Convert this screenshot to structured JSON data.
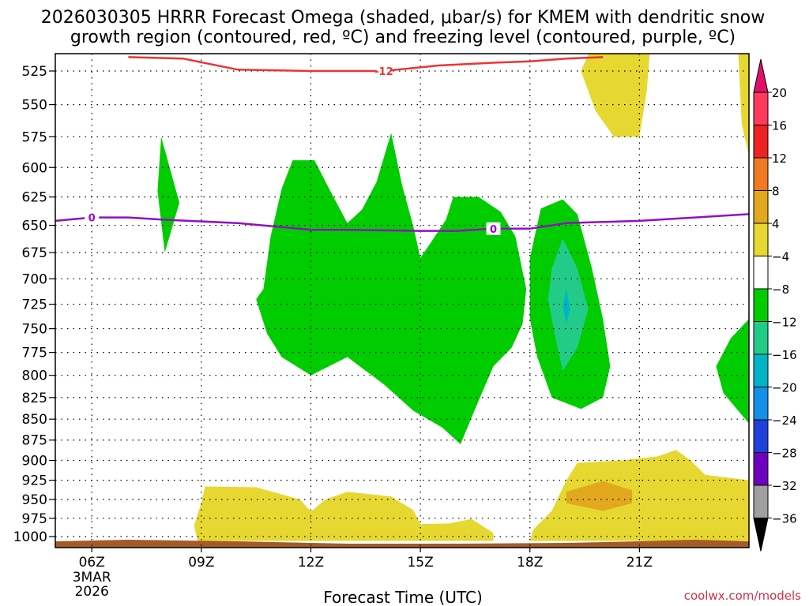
{
  "chart_data": {
    "type": "heatmap",
    "title_line1": "2026030305 HRRR Forecast Omega (shaded, μbar/s) for KMEM with dendritic snow",
    "title_line2": "growth region (contoured, red, ºC) and freezing level (contoured, purple, ºC)",
    "xlabel": "Forecast Time (UTC)",
    "credit": "coolwx.com/models",
    "x_range_hours": [
      5,
      24
    ],
    "x_ticks": [
      {
        "hour": 6,
        "label": "06Z",
        "date1": "3MAR",
        "date2": "2026"
      },
      {
        "hour": 9,
        "label": "09Z"
      },
      {
        "hour": 12,
        "label": "12Z"
      },
      {
        "hour": 15,
        "label": "15Z"
      },
      {
        "hour": 18,
        "label": "18Z"
      },
      {
        "hour": 21,
        "label": "21Z"
      }
    ],
    "y_levels_mb": [
      525,
      550,
      575,
      600,
      625,
      650,
      675,
      700,
      725,
      750,
      775,
      800,
      825,
      850,
      875,
      900,
      925,
      950,
      975,
      1000
    ],
    "y_tick_labels": [
      "525",
      "550",
      "575",
      "600",
      "625",
      "650",
      "675",
      "700",
      "725",
      "750",
      "775",
      "800",
      "825",
      "850",
      "875",
      "900",
      "925",
      "950",
      "975",
      "1000"
    ],
    "colorbar": {
      "labels": [
        "20",
        "16",
        "12",
        "8",
        "4",
        "−4",
        "−8",
        "−12",
        "−16",
        "−20",
        "−24",
        "−28",
        "−32",
        "−36"
      ],
      "colors": [
        "#ff3a5c",
        "#ee2222",
        "#f07a22",
        "#e2a81e",
        "#e6d830",
        "#ffffff",
        "#00cc00",
        "#22cc88",
        "#00b4c8",
        "#1490e8",
        "#2040dc",
        "#7000c0",
        "#a010c8",
        "#a0a0a0"
      ],
      "top_arrow_color": "#e0106a",
      "bottom_arrow_color": "#000000"
    },
    "contours": [
      {
        "name": "dendritic-growth -12C",
        "color": "#ee3333",
        "label": "-12",
        "points": [
          [
            7.0,
            515
          ],
          [
            8.5,
            516
          ],
          [
            10.0,
            524
          ],
          [
            12.0,
            525
          ],
          [
            14.0,
            525
          ],
          [
            15.5,
            521
          ],
          [
            17.0,
            519
          ],
          [
            18.0,
            518
          ],
          [
            19.0,
            516
          ],
          [
            20.0,
            515
          ]
        ]
      },
      {
        "name": "freezing-level 0C",
        "color": "#9010c0",
        "label": "0",
        "points": [
          [
            5.0,
            646
          ],
          [
            6.0,
            643
          ],
          [
            7.0,
            643
          ],
          [
            8.0,
            645
          ],
          [
            10.0,
            648
          ],
          [
            12.0,
            654
          ],
          [
            13.0,
            654
          ],
          [
            15.0,
            655
          ],
          [
            16.0,
            655
          ],
          [
            17.0,
            653
          ],
          [
            18.0,
            653
          ],
          [
            19.0,
            648
          ],
          [
            21.0,
            646
          ],
          [
            24.0,
            640
          ]
        ]
      }
    ],
    "shaded_regions": [
      {
        "name": "green-small-08z",
        "color": "#00cc00",
        "points": [
          [
            7.9,
            575
          ],
          [
            8.4,
            630
          ],
          [
            8.0,
            675
          ],
          [
            7.8,
            620
          ]
        ]
      },
      {
        "name": "green-main-10z-17z",
        "color": "#00cc00",
        "points": [
          [
            10.7,
            710
          ],
          [
            10.9,
            660
          ],
          [
            11.2,
            618
          ],
          [
            11.5,
            594
          ],
          [
            12.1,
            594
          ],
          [
            12.5,
            618
          ],
          [
            13.0,
            648
          ],
          [
            13.4,
            636
          ],
          [
            13.8,
            612
          ],
          [
            14.2,
            572
          ],
          [
            14.5,
            615
          ],
          [
            14.8,
            650
          ],
          [
            15.0,
            680
          ],
          [
            15.3,
            665
          ],
          [
            15.7,
            645
          ],
          [
            15.9,
            625
          ],
          [
            16.6,
            625
          ],
          [
            17.2,
            638
          ],
          [
            17.6,
            660
          ],
          [
            17.9,
            710
          ],
          [
            17.8,
            745
          ],
          [
            17.5,
            770
          ],
          [
            17.0,
            790
          ],
          [
            16.5,
            838
          ],
          [
            16.1,
            880
          ],
          [
            15.6,
            860
          ],
          [
            14.8,
            840
          ],
          [
            14.0,
            810
          ],
          [
            13.0,
            780
          ],
          [
            12.0,
            800
          ],
          [
            11.2,
            780
          ],
          [
            10.8,
            755
          ],
          [
            10.5,
            720
          ]
        ]
      },
      {
        "name": "green-18z-19z",
        "color": "#00cc00",
        "points": [
          [
            18.0,
            680
          ],
          [
            18.3,
            635
          ],
          [
            18.9,
            627
          ],
          [
            19.3,
            640
          ],
          [
            19.7,
            690
          ],
          [
            20.0,
            740
          ],
          [
            20.2,
            790
          ],
          [
            20.0,
            825
          ],
          [
            19.4,
            838
          ],
          [
            18.6,
            825
          ],
          [
            18.2,
            780
          ],
          [
            18.0,
            740
          ]
        ]
      },
      {
        "name": "teal-19z",
        "color": "#22cc88",
        "points": [
          [
            18.9,
            662
          ],
          [
            19.3,
            690
          ],
          [
            19.6,
            730
          ],
          [
            19.3,
            770
          ],
          [
            18.9,
            795
          ],
          [
            18.7,
            760
          ],
          [
            18.5,
            720
          ],
          [
            18.6,
            690
          ]
        ]
      },
      {
        "name": "cyan-19z-core",
        "color": "#00b4c8",
        "points": [
          [
            19.0,
            710
          ],
          [
            19.1,
            730
          ],
          [
            19.0,
            745
          ],
          [
            18.9,
            728
          ]
        ]
      },
      {
        "name": "green-right-edge",
        "color": "#00cc00",
        "points": [
          [
            24.0,
            740
          ],
          [
            24.0,
            855
          ],
          [
            23.3,
            820
          ],
          [
            23.1,
            790
          ],
          [
            23.5,
            760
          ]
        ]
      },
      {
        "name": "yellow-top-right",
        "color": "#e6d830",
        "points": [
          [
            19.7,
            507
          ],
          [
            21.3,
            507
          ],
          [
            21.2,
            540
          ],
          [
            21.0,
            575
          ],
          [
            20.3,
            575
          ],
          [
            19.8,
            555
          ],
          [
            19.4,
            525
          ]
        ]
      },
      {
        "name": "yellow-top-edge",
        "color": "#e6d830",
        "points": [
          [
            23.7,
            507
          ],
          [
            24.0,
            507
          ],
          [
            24.0,
            590
          ],
          [
            23.8,
            565
          ]
        ]
      },
      {
        "name": "yellow-low-left",
        "color": "#e6d830",
        "points": [
          [
            8.9,
            1006
          ],
          [
            8.8,
            985
          ],
          [
            9.0,
            955
          ],
          [
            9.1,
            933
          ],
          [
            10.5,
            934
          ],
          [
            11.7,
            950
          ],
          [
            12.0,
            966
          ],
          [
            12.4,
            950
          ],
          [
            13.0,
            940
          ],
          [
            14.2,
            946
          ],
          [
            14.8,
            964
          ],
          [
            15.0,
            983
          ],
          [
            15.8,
            982
          ],
          [
            16.4,
            976
          ],
          [
            17.0,
            995
          ],
          [
            17.0,
            1006
          ]
        ]
      },
      {
        "name": "yellow-low-right",
        "color": "#e6d830",
        "points": [
          [
            18.0,
            1006
          ],
          [
            18.1,
            990
          ],
          [
            18.6,
            965
          ],
          [
            19.0,
            925
          ],
          [
            19.3,
            903
          ],
          [
            20.5,
            900
          ],
          [
            21.5,
            895
          ],
          [
            22.0,
            887
          ],
          [
            22.4,
            900
          ],
          [
            22.8,
            918
          ],
          [
            24.0,
            925
          ],
          [
            24.0,
            1006
          ]
        ]
      },
      {
        "name": "orange-20z",
        "color": "#e2a81e",
        "points": [
          [
            19.0,
            940
          ],
          [
            20.0,
            926
          ],
          [
            20.8,
            938
          ],
          [
            20.8,
            955
          ],
          [
            20.0,
            965
          ],
          [
            19.0,
            955
          ]
        ]
      }
    ],
    "ground_color": "#a65a2a"
  }
}
